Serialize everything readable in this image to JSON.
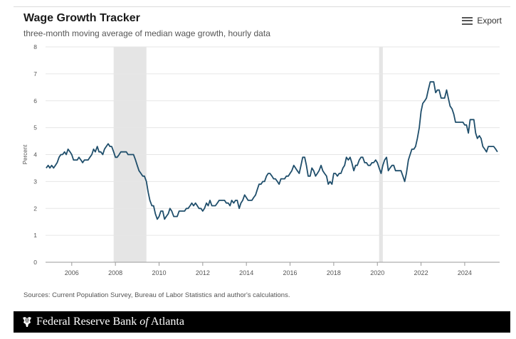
{
  "header": {
    "title": "Wage Growth Tracker",
    "subtitle": "three-month moving average of median wage growth, hourly data",
    "export_label": "Export"
  },
  "source_note": "Sources: Current Population Survey, Bureau of Labor Statistics and author's calculations.",
  "footer": {
    "org_prefix": "Federal Reserve Bank ",
    "org_of": "of",
    "org_suffix": " Atlanta",
    "logo_icon": "eagle-icon"
  },
  "colors": {
    "line": "#1f4e6b",
    "recession": "#e5e5e5",
    "grid": "#e6e6e6",
    "footer_bg": "#000000"
  },
  "chart_data": {
    "type": "line",
    "title": "Wage Growth Tracker",
    "subtitle": "three-month moving average of median wage growth, hourly data",
    "ylabel": "Percent",
    "xlabel": "",
    "xlim": [
      2004.8,
      2025.6
    ],
    "ylim": [
      0,
      8
    ],
    "yticks": [
      0,
      1,
      2,
      3,
      4,
      5,
      6,
      7,
      8
    ],
    "xticks": [
      2006,
      2008,
      2010,
      2012,
      2014,
      2016,
      2018,
      2020,
      2022,
      2024
    ],
    "grid": true,
    "legend": "none",
    "recessions": [
      [
        2007.92,
        2009.42
      ],
      [
        2020.08,
        2020.25
      ]
    ],
    "series": [
      {
        "name": "",
        "points": [
          [
            2004.83,
            3.5
          ],
          [
            2004.92,
            3.6
          ],
          [
            2005.0,
            3.5
          ],
          [
            2005.08,
            3.6
          ],
          [
            2005.17,
            3.5
          ],
          [
            2005.25,
            3.6
          ],
          [
            2005.33,
            3.7
          ],
          [
            2005.42,
            3.9
          ],
          [
            2005.5,
            4.0
          ],
          [
            2005.58,
            4.0
          ],
          [
            2005.67,
            4.1
          ],
          [
            2005.75,
            4.0
          ],
          [
            2005.83,
            4.2
          ],
          [
            2005.92,
            4.1
          ],
          [
            2006.0,
            4.0
          ],
          [
            2006.08,
            3.8
          ],
          [
            2006.17,
            3.8
          ],
          [
            2006.25,
            3.8
          ],
          [
            2006.33,
            3.9
          ],
          [
            2006.42,
            3.8
          ],
          [
            2006.5,
            3.7
          ],
          [
            2006.58,
            3.8
          ],
          [
            2006.67,
            3.8
          ],
          [
            2006.75,
            3.8
          ],
          [
            2006.83,
            3.9
          ],
          [
            2006.92,
            4.0
          ],
          [
            2007.0,
            4.2
          ],
          [
            2007.08,
            4.1
          ],
          [
            2007.17,
            4.3
          ],
          [
            2007.25,
            4.1
          ],
          [
            2007.33,
            4.1
          ],
          [
            2007.42,
            4.0
          ],
          [
            2007.5,
            4.2
          ],
          [
            2007.58,
            4.3
          ],
          [
            2007.67,
            4.4
          ],
          [
            2007.75,
            4.3
          ],
          [
            2007.83,
            4.3
          ],
          [
            2007.92,
            4.1
          ],
          [
            2008.0,
            3.9
          ],
          [
            2008.08,
            3.9
          ],
          [
            2008.17,
            4.0
          ],
          [
            2008.25,
            4.1
          ],
          [
            2008.33,
            4.1
          ],
          [
            2008.42,
            4.1
          ],
          [
            2008.5,
            4.1
          ],
          [
            2008.58,
            4.0
          ],
          [
            2008.67,
            4.0
          ],
          [
            2008.75,
            4.0
          ],
          [
            2008.83,
            4.0
          ],
          [
            2008.92,
            3.8
          ],
          [
            2009.0,
            3.6
          ],
          [
            2009.08,
            3.4
          ],
          [
            2009.17,
            3.3
          ],
          [
            2009.25,
            3.2
          ],
          [
            2009.33,
            3.2
          ],
          [
            2009.42,
            3.0
          ],
          [
            2009.5,
            2.6
          ],
          [
            2009.58,
            2.3
          ],
          [
            2009.67,
            2.1
          ],
          [
            2009.75,
            2.1
          ],
          [
            2009.83,
            1.8
          ],
          [
            2009.92,
            1.6
          ],
          [
            2010.0,
            1.7
          ],
          [
            2010.08,
            1.9
          ],
          [
            2010.17,
            1.9
          ],
          [
            2010.25,
            1.6
          ],
          [
            2010.33,
            1.7
          ],
          [
            2010.42,
            1.8
          ],
          [
            2010.5,
            2.0
          ],
          [
            2010.58,
            1.9
          ],
          [
            2010.67,
            1.7
          ],
          [
            2010.75,
            1.7
          ],
          [
            2010.83,
            1.7
          ],
          [
            2010.92,
            1.9
          ],
          [
            2011.0,
            1.9
          ],
          [
            2011.08,
            1.9
          ],
          [
            2011.17,
            1.9
          ],
          [
            2011.25,
            2.0
          ],
          [
            2011.33,
            2.0
          ],
          [
            2011.42,
            2.1
          ],
          [
            2011.5,
            2.2
          ],
          [
            2011.58,
            2.1
          ],
          [
            2011.67,
            2.2
          ],
          [
            2011.75,
            2.1
          ],
          [
            2011.83,
            2.0
          ],
          [
            2011.92,
            2.0
          ],
          [
            2012.0,
            1.9
          ],
          [
            2012.08,
            2.0
          ],
          [
            2012.17,
            2.2
          ],
          [
            2012.25,
            2.1
          ],
          [
            2012.33,
            2.3
          ],
          [
            2012.42,
            2.1
          ],
          [
            2012.5,
            2.1
          ],
          [
            2012.58,
            2.1
          ],
          [
            2012.67,
            2.2
          ],
          [
            2012.75,
            2.3
          ],
          [
            2012.83,
            2.3
          ],
          [
            2012.92,
            2.3
          ],
          [
            2013.0,
            2.3
          ],
          [
            2013.08,
            2.2
          ],
          [
            2013.17,
            2.2
          ],
          [
            2013.25,
            2.1
          ],
          [
            2013.33,
            2.3
          ],
          [
            2013.42,
            2.2
          ],
          [
            2013.5,
            2.3
          ],
          [
            2013.58,
            2.3
          ],
          [
            2013.67,
            2.0
          ],
          [
            2013.75,
            2.2
          ],
          [
            2013.83,
            2.3
          ],
          [
            2013.92,
            2.5
          ],
          [
            2014.0,
            2.4
          ],
          [
            2014.08,
            2.3
          ],
          [
            2014.17,
            2.3
          ],
          [
            2014.25,
            2.3
          ],
          [
            2014.33,
            2.4
          ],
          [
            2014.42,
            2.5
          ],
          [
            2014.5,
            2.7
          ],
          [
            2014.58,
            2.9
          ],
          [
            2014.67,
            2.9
          ],
          [
            2014.75,
            3.0
          ],
          [
            2014.83,
            3.0
          ],
          [
            2014.92,
            3.2
          ],
          [
            2015.0,
            3.3
          ],
          [
            2015.08,
            3.3
          ],
          [
            2015.17,
            3.2
          ],
          [
            2015.25,
            3.1
          ],
          [
            2015.33,
            3.1
          ],
          [
            2015.42,
            3.0
          ],
          [
            2015.5,
            2.9
          ],
          [
            2015.58,
            3.1
          ],
          [
            2015.67,
            3.1
          ],
          [
            2015.75,
            3.1
          ],
          [
            2015.83,
            3.2
          ],
          [
            2015.92,
            3.2
          ],
          [
            2016.0,
            3.3
          ],
          [
            2016.08,
            3.4
          ],
          [
            2016.17,
            3.6
          ],
          [
            2016.25,
            3.5
          ],
          [
            2016.33,
            3.4
          ],
          [
            2016.42,
            3.3
          ],
          [
            2016.5,
            3.6
          ],
          [
            2016.58,
            3.9
          ],
          [
            2016.67,
            3.9
          ],
          [
            2016.75,
            3.6
          ],
          [
            2016.83,
            3.2
          ],
          [
            2016.92,
            3.2
          ],
          [
            2017.0,
            3.5
          ],
          [
            2017.08,
            3.4
          ],
          [
            2017.17,
            3.2
          ],
          [
            2017.25,
            3.3
          ],
          [
            2017.33,
            3.4
          ],
          [
            2017.42,
            3.6
          ],
          [
            2017.5,
            3.4
          ],
          [
            2017.58,
            3.3
          ],
          [
            2017.67,
            3.2
          ],
          [
            2017.75,
            2.9
          ],
          [
            2017.83,
            3.0
          ],
          [
            2017.92,
            2.9
          ],
          [
            2018.0,
            3.3
          ],
          [
            2018.08,
            3.3
          ],
          [
            2018.17,
            3.2
          ],
          [
            2018.25,
            3.3
          ],
          [
            2018.33,
            3.3
          ],
          [
            2018.42,
            3.5
          ],
          [
            2018.5,
            3.6
          ],
          [
            2018.58,
            3.9
          ],
          [
            2018.67,
            3.8
          ],
          [
            2018.75,
            3.9
          ],
          [
            2018.83,
            3.7
          ],
          [
            2018.92,
            3.4
          ],
          [
            2019.0,
            3.6
          ],
          [
            2019.08,
            3.6
          ],
          [
            2019.17,
            3.8
          ],
          [
            2019.25,
            3.9
          ],
          [
            2019.33,
            3.9
          ],
          [
            2019.42,
            3.7
          ],
          [
            2019.5,
            3.7
          ],
          [
            2019.58,
            3.6
          ],
          [
            2019.67,
            3.6
          ],
          [
            2019.75,
            3.7
          ],
          [
            2019.83,
            3.7
          ],
          [
            2019.92,
            3.8
          ],
          [
            2020.0,
            3.7
          ],
          [
            2020.08,
            3.5
          ],
          [
            2020.17,
            3.3
          ],
          [
            2020.25,
            3.6
          ],
          [
            2020.33,
            3.8
          ],
          [
            2020.42,
            3.9
          ],
          [
            2020.5,
            3.4
          ],
          [
            2020.58,
            3.5
          ],
          [
            2020.67,
            3.6
          ],
          [
            2020.75,
            3.6
          ],
          [
            2020.83,
            3.4
          ],
          [
            2020.92,
            3.4
          ],
          [
            2021.0,
            3.4
          ],
          [
            2021.08,
            3.4
          ],
          [
            2021.17,
            3.2
          ],
          [
            2021.25,
            3.0
          ],
          [
            2021.33,
            3.3
          ],
          [
            2021.42,
            3.8
          ],
          [
            2021.5,
            4.0
          ],
          [
            2021.58,
            4.2
          ],
          [
            2021.67,
            4.2
          ],
          [
            2021.75,
            4.3
          ],
          [
            2021.83,
            4.6
          ],
          [
            2021.92,
            5.0
          ],
          [
            2022.0,
            5.6
          ],
          [
            2022.08,
            5.9
          ],
          [
            2022.17,
            6.0
          ],
          [
            2022.25,
            6.1
          ],
          [
            2022.33,
            6.4
          ],
          [
            2022.42,
            6.7
          ],
          [
            2022.5,
            6.7
          ],
          [
            2022.58,
            6.7
          ],
          [
            2022.67,
            6.3
          ],
          [
            2022.75,
            6.4
          ],
          [
            2022.83,
            6.4
          ],
          [
            2022.92,
            6.1
          ],
          [
            2023.0,
            6.1
          ],
          [
            2023.08,
            6.1
          ],
          [
            2023.17,
            6.4
          ],
          [
            2023.25,
            6.1
          ],
          [
            2023.33,
            5.8
          ],
          [
            2023.42,
            5.7
          ],
          [
            2023.5,
            5.5
          ],
          [
            2023.58,
            5.2
          ],
          [
            2023.67,
            5.2
          ],
          [
            2023.75,
            5.2
          ],
          [
            2023.83,
            5.2
          ],
          [
            2023.92,
            5.2
          ],
          [
            2024.0,
            5.1
          ],
          [
            2024.08,
            5.1
          ],
          [
            2024.17,
            4.8
          ],
          [
            2024.25,
            5.3
          ],
          [
            2024.33,
            5.3
          ],
          [
            2024.42,
            5.3
          ],
          [
            2024.5,
            4.8
          ],
          [
            2024.58,
            4.6
          ],
          [
            2024.67,
            4.7
          ],
          [
            2024.75,
            4.6
          ],
          [
            2024.83,
            4.3
          ],
          [
            2024.92,
            4.2
          ],
          [
            2025.0,
            4.1
          ],
          [
            2025.08,
            4.3
          ],
          [
            2025.17,
            4.3
          ],
          [
            2025.25,
            4.3
          ],
          [
            2025.33,
            4.3
          ],
          [
            2025.42,
            4.2
          ],
          [
            2025.5,
            4.1
          ]
        ]
      }
    ]
  }
}
